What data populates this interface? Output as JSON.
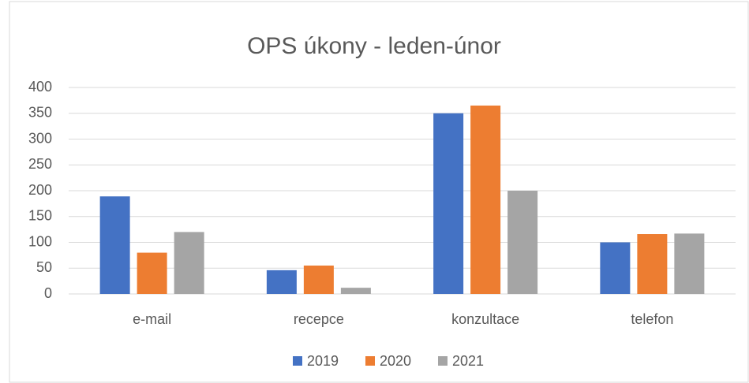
{
  "chart_data": {
    "type": "bar",
    "title": "OPS úkony - leden-únor",
    "categories": [
      "e-mail",
      "recepce",
      "konzultace",
      "telefon"
    ],
    "series": [
      {
        "name": "2019",
        "color": "#4472c4",
        "values": [
          189,
          46,
          350,
          100
        ]
      },
      {
        "name": "2020",
        "color": "#ed7d31",
        "values": [
          80,
          55,
          365,
          116
        ]
      },
      {
        "name": "2021",
        "color": "#a5a5a5",
        "values": [
          120,
          12,
          200,
          117
        ]
      }
    ],
    "ylim": [
      0,
      400
    ],
    "yticks": [
      0,
      50,
      100,
      150,
      200,
      250,
      300,
      350,
      400
    ],
    "grid": true,
    "legend": "bottom"
  }
}
